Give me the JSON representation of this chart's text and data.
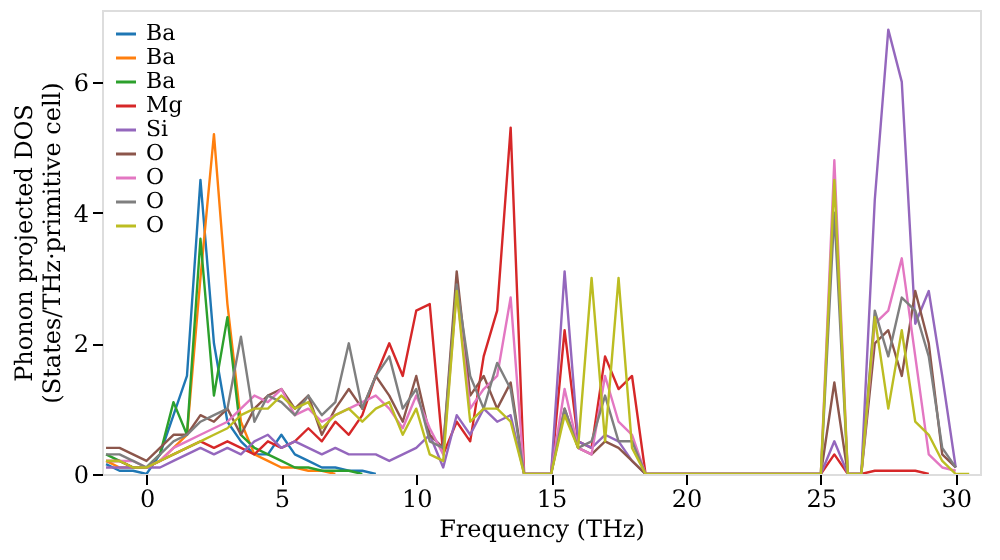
{
  "chart_data": {
    "type": "line",
    "xlabel": "Frequency (THz)",
    "ylabel": "Phonon projected DOS\n(States/THz·primitive cell)",
    "x": [
      -1.5,
      -1.0,
      -0.5,
      0.0,
      0.5,
      1.0,
      1.5,
      2.0,
      2.5,
      3.0,
      3.5,
      4.0,
      4.5,
      5.0,
      5.5,
      6.0,
      6.5,
      7.0,
      7.5,
      8.0,
      8.5,
      9.0,
      9.5,
      10.0,
      10.5,
      11.0,
      11.5,
      12.0,
      12.5,
      13.0,
      13.5,
      14.0,
      14.5,
      15.0,
      15.5,
      16.0,
      16.5,
      17.0,
      17.5,
      18.0,
      18.5,
      19.0,
      19.5,
      20.0,
      20.5,
      21.0,
      21.5,
      22.0,
      22.5,
      23.0,
      23.5,
      24.0,
      24.5,
      25.0,
      25.5,
      26.0,
      26.5,
      27.0,
      27.5,
      28.0,
      28.5,
      29.0,
      29.5,
      30.0,
      30.5
    ],
    "series": [
      {
        "name": "Ba",
        "color": "#1f77b4",
        "values": [
          0.15,
          0.05,
          0.05,
          0.0,
          0.3,
          0.9,
          1.5,
          4.5,
          2.0,
          0.8,
          0.5,
          0.3,
          0.3,
          0.6,
          0.3,
          0.2,
          0.1,
          0.1,
          0.05,
          0.05,
          0,
          null,
          null,
          null,
          null,
          null,
          null,
          null,
          null,
          null,
          null,
          null,
          null,
          null,
          null,
          null,
          null,
          null,
          null,
          null,
          null,
          null,
          null,
          null,
          null,
          null,
          null,
          null,
          null,
          null,
          null,
          null,
          null,
          null,
          null,
          null,
          null,
          null,
          null,
          null,
          null,
          null,
          null,
          null,
          null
        ]
      },
      {
        "name": "Ba",
        "color": "#ff7f0e",
        "values": [
          0.2,
          0.1,
          0.1,
          0.1,
          0.2,
          0.4,
          0.6,
          3.0,
          5.2,
          2.6,
          0.8,
          0.3,
          0.2,
          0.1,
          0.1,
          0.05,
          0.05,
          0,
          null,
          null,
          null,
          null,
          null,
          null,
          null,
          null,
          null,
          null,
          null,
          null,
          null,
          null,
          null,
          null,
          null,
          null,
          null,
          null,
          null,
          null,
          null,
          null,
          null,
          null,
          null,
          null,
          null,
          null,
          null,
          null,
          null,
          null,
          null,
          null,
          null,
          null,
          null,
          null,
          null,
          null,
          null,
          null,
          null,
          null,
          null
        ]
      },
      {
        "name": "Ba",
        "color": "#2ca02c",
        "values": [
          0.3,
          0.2,
          0.1,
          0.1,
          0.3,
          1.1,
          0.6,
          3.6,
          1.2,
          2.4,
          0.6,
          0.4,
          0.3,
          0.2,
          0.1,
          0.1,
          0.05,
          0.05,
          0.05,
          0,
          null,
          null,
          null,
          null,
          null,
          null,
          null,
          null,
          null,
          null,
          null,
          null,
          null,
          null,
          null,
          null,
          null,
          null,
          null,
          null,
          null,
          null,
          null,
          null,
          null,
          null,
          null,
          null,
          null,
          null,
          null,
          null,
          null,
          null,
          null,
          null,
          null,
          null,
          null,
          null,
          null,
          null,
          null,
          null,
          null
        ]
      },
      {
        "name": "Mg",
        "color": "#d62728",
        "values": [
          0.2,
          0.2,
          0.1,
          0.1,
          0.2,
          0.3,
          0.4,
          0.5,
          0.4,
          0.5,
          0.4,
          0.3,
          0.5,
          0.4,
          0.5,
          0.7,
          0.5,
          0.8,
          0.6,
          0.9,
          1.5,
          2.0,
          1.5,
          2.5,
          2.6,
          0.3,
          0.8,
          0.5,
          1.8,
          2.5,
          5.3,
          0,
          null,
          0,
          2.2,
          0.5,
          0.4,
          1.8,
          1.3,
          1.5,
          0,
          null,
          null,
          null,
          null,
          null,
          null,
          null,
          null,
          null,
          null,
          null,
          null,
          0,
          0.3,
          0,
          0,
          0.05,
          0.05,
          0.05,
          0.05,
          0,
          null,
          null,
          null
        ]
      },
      {
        "name": "Si",
        "color": "#9467bd",
        "values": [
          0.1,
          0.1,
          0.1,
          0.1,
          0.1,
          0.2,
          0.3,
          0.4,
          0.3,
          0.4,
          0.3,
          0.5,
          0.6,
          0.4,
          0.5,
          0.4,
          0.3,
          0.4,
          0.3,
          0.3,
          0.3,
          0.2,
          0.3,
          0.4,
          0.6,
          0.1,
          0.9,
          0.6,
          1.0,
          0.8,
          0.9,
          0,
          null,
          0,
          3.1,
          0.5,
          0.4,
          0.6,
          0.5,
          0.2,
          0,
          null,
          null,
          null,
          null,
          null,
          null,
          null,
          null,
          null,
          null,
          null,
          null,
          0,
          0.5,
          0,
          0,
          4.2,
          6.8,
          6.0,
          2.3,
          2.8,
          1.5,
          0.1,
          null
        ]
      },
      {
        "name": "O",
        "color": "#8c564b",
        "values": [
          0.4,
          0.4,
          0.3,
          0.2,
          0.4,
          0.6,
          0.6,
          0.9,
          0.8,
          1.0,
          0.6,
          1.0,
          1.2,
          1.3,
          1.0,
          1.2,
          0.6,
          1.0,
          1.3,
          1.0,
          1.5,
          1.2,
          0.8,
          1.5,
          0.6,
          0.4,
          3.1,
          1.2,
          1.5,
          1.0,
          1.4,
          0,
          null,
          0,
          1.0,
          0.4,
          0.3,
          0.5,
          0.4,
          0.2,
          0,
          null,
          null,
          null,
          null,
          null,
          null,
          null,
          null,
          null,
          null,
          null,
          null,
          0,
          1.4,
          0,
          0,
          2.0,
          2.2,
          1.5,
          2.8,
          2.0,
          0.3,
          0.1,
          null
        ]
      },
      {
        "name": "O",
        "color": "#e377c2",
        "values": [
          0.2,
          0.2,
          0.2,
          0.1,
          0.2,
          0.4,
          0.5,
          0.6,
          0.7,
          0.8,
          1.0,
          1.2,
          1.1,
          1.3,
          0.9,
          1.0,
          0.8,
          0.9,
          1.0,
          1.1,
          1.2,
          1.0,
          0.7,
          1.2,
          0.7,
          0.3,
          2.8,
          1.0,
          1.3,
          1.5,
          2.7,
          0,
          null,
          0,
          1.3,
          0.4,
          0.3,
          1.5,
          0.8,
          0.6,
          0,
          null,
          null,
          null,
          null,
          null,
          null,
          null,
          null,
          null,
          null,
          null,
          null,
          0,
          4.8,
          0,
          0,
          2.3,
          2.5,
          3.3,
          1.8,
          0.3,
          0.1,
          0.05,
          null
        ]
      },
      {
        "name": "O",
        "color": "#7f7f7f",
        "values": [
          0.3,
          0.3,
          0.2,
          0.1,
          0.3,
          0.5,
          0.6,
          0.8,
          0.9,
          1.0,
          2.1,
          0.8,
          1.2,
          1.1,
          0.9,
          1.2,
          0.9,
          1.1,
          2.0,
          1.0,
          1.5,
          1.8,
          1.0,
          1.3,
          0.5,
          0.4,
          2.9,
          1.5,
          1.0,
          1.7,
          1.3,
          0,
          null,
          0,
          1.0,
          0.4,
          0.5,
          1.2,
          0.5,
          0.5,
          0,
          null,
          null,
          null,
          null,
          null,
          null,
          null,
          null,
          null,
          null,
          null,
          null,
          0,
          4.0,
          0,
          0,
          2.5,
          1.8,
          2.7,
          2.5,
          1.8,
          0.4,
          0.1,
          null
        ]
      },
      {
        "name": "O",
        "color": "#bcbd22",
        "values": [
          0.2,
          0.2,
          0.1,
          0.1,
          0.2,
          0.3,
          0.4,
          0.5,
          0.6,
          0.7,
          0.9,
          1.0,
          1.0,
          1.2,
          1.0,
          1.1,
          0.7,
          0.9,
          1.0,
          0.8,
          1.0,
          1.1,
          0.6,
          1.0,
          0.3,
          0.2,
          2.8,
          0.8,
          1.0,
          1.0,
          0.8,
          0,
          0,
          0,
          0.9,
          0.4,
          3.0,
          0.5,
          3.0,
          0.4,
          0,
          0,
          0,
          0,
          0,
          0,
          0,
          0,
          0,
          0,
          0,
          0,
          0,
          0,
          4.5,
          0,
          0,
          2.4,
          1.0,
          2.2,
          0.8,
          0.6,
          0.2,
          0,
          0
        ]
      }
    ],
    "xlim": [
      -1.65,
      30.9
    ],
    "ylim": [
      0,
      7.1
    ],
    "xticks": [
      0,
      5,
      10,
      15,
      20,
      25,
      30
    ],
    "yticks": [
      0,
      2,
      4,
      6
    ],
    "grid": false,
    "legend": "top left",
    "line_style": "solid",
    "marker": "none"
  }
}
